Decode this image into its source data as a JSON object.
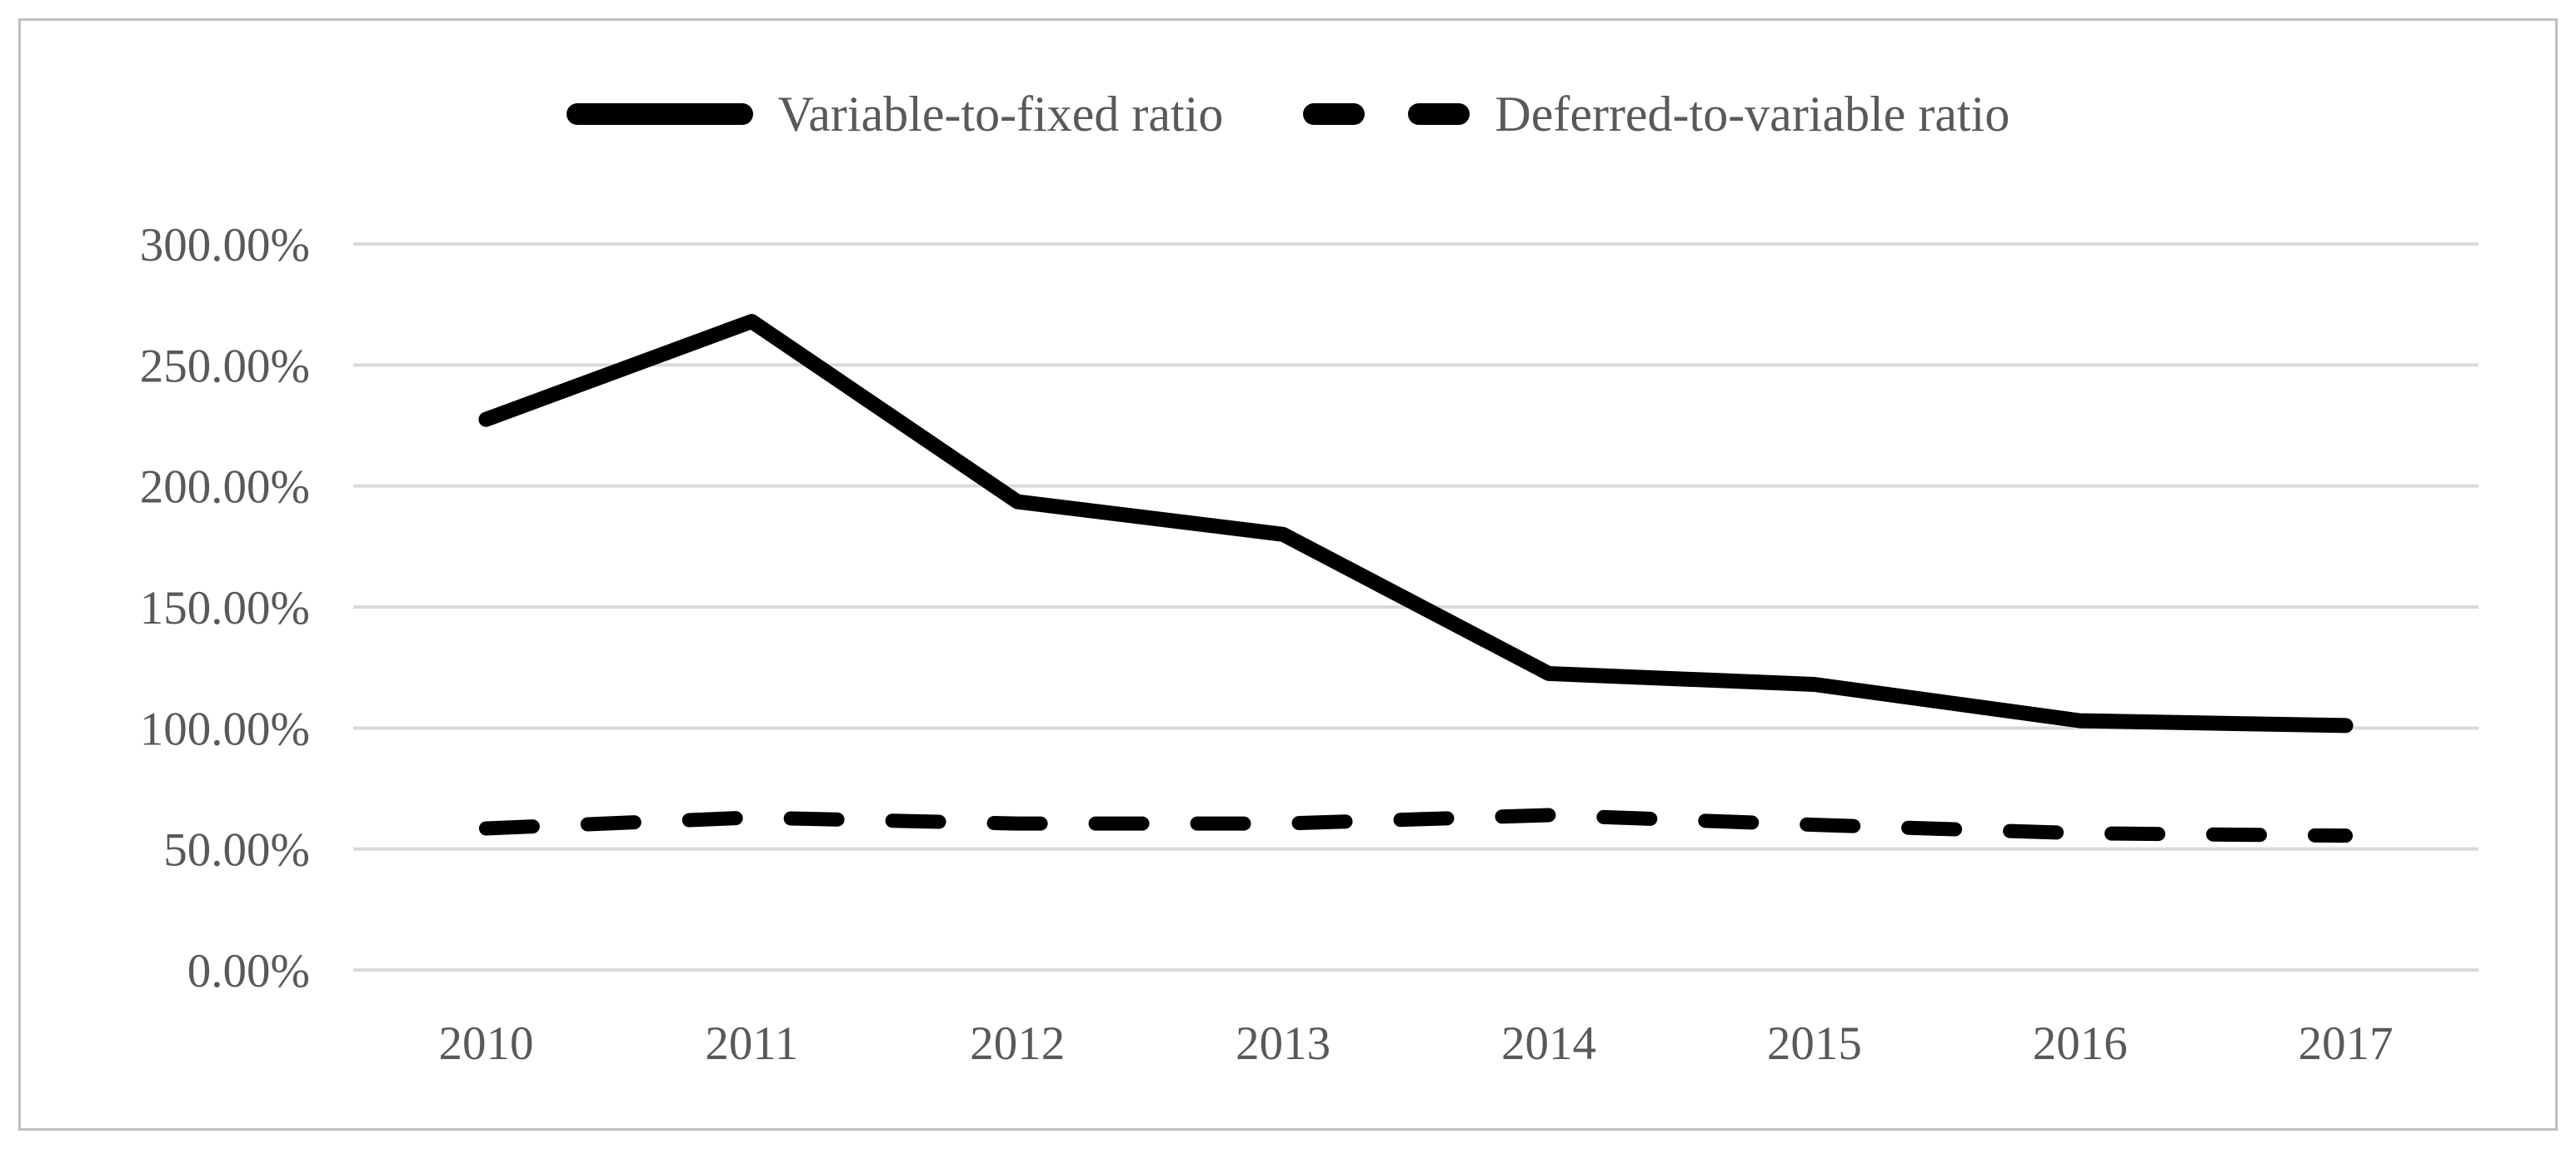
{
  "chart_data": {
    "type": "line",
    "title": "",
    "categories": [
      "2010",
      "2011",
      "2012",
      "2013",
      "2014",
      "2015",
      "2016",
      "2017"
    ],
    "series": [
      {
        "name": "Variable-to-fixed ratio",
        "line_style": "solid",
        "values": [
          227.5,
          268,
          193.5,
          180,
          122.5,
          118,
          103,
          101
        ]
      },
      {
        "name": "Deferred-to-variable ratio",
        "line_style": "dashed",
        "values": [
          58.5,
          63,
          60.5,
          60.5,
          64,
          60,
          56.5,
          55.5
        ]
      }
    ],
    "xlabel": "",
    "ylabel": "",
    "ylim": [
      0,
      300
    ],
    "ytick_step": 50,
    "yticks": [
      "0.00%",
      "50.00%",
      "100.00%",
      "150.00%",
      "200.00%",
      "250.00%",
      "300.00%"
    ],
    "grid": "horizontal",
    "legend_position": "top-center",
    "unit": "percent"
  },
  "colors": {
    "line": "#000000",
    "grid": "#d9d9d9",
    "axis_text": "#595959",
    "frame_border": "#bfbfbf",
    "background": "#ffffff"
  }
}
